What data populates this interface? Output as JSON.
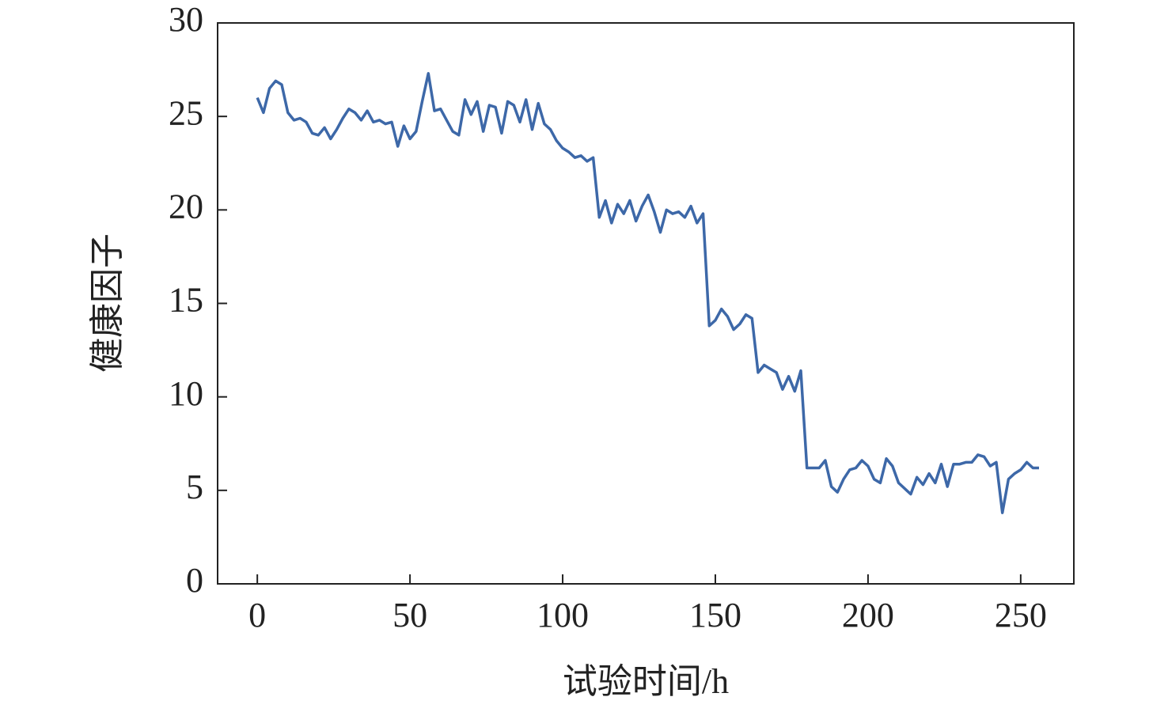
{
  "chart_data": {
    "type": "line",
    "xlabel": "试验时间/h",
    "ylabel": "健康因子",
    "xlim": [
      -13,
      267.4
    ],
    "xticks": [
      0,
      50,
      100,
      150,
      200,
      250
    ],
    "ylim": [
      0,
      30
    ],
    "yticks": [
      0,
      5,
      10,
      15,
      20,
      25,
      30
    ],
    "x": [
      0,
      2,
      4,
      6,
      8,
      10,
      12,
      14,
      16,
      18,
      20,
      22,
      24,
      26,
      28,
      30,
      32,
      34,
      36,
      38,
      40,
      42,
      44,
      46,
      48,
      50,
      52,
      54,
      56,
      58,
      60,
      62,
      64,
      66,
      68,
      70,
      72,
      74,
      76,
      78,
      80,
      82,
      84,
      86,
      88,
      90,
      92,
      94,
      96,
      98,
      100,
      102,
      104,
      106,
      108,
      110,
      112,
      114,
      116,
      118,
      120,
      122,
      124,
      126,
      128,
      130,
      132,
      134,
      136,
      138,
      140,
      142,
      144,
      146,
      148,
      150,
      152,
      154,
      156,
      158,
      160,
      162,
      164,
      166,
      168,
      170,
      172,
      174,
      176,
      178,
      180,
      182,
      184,
      186,
      188,
      190,
      192,
      194,
      196,
      198,
      200,
      202,
      204,
      206,
      208,
      210,
      212,
      214,
      216,
      218,
      220,
      222,
      224,
      226,
      228,
      230,
      232,
      234,
      236,
      238,
      240,
      242,
      244,
      246,
      248,
      250,
      252,
      254,
      256
    ],
    "series": [
      {
        "name": "健康因子",
        "color": "#3d68a8",
        "values": [
          26,
          25.2,
          26.5,
          26.9,
          26.7,
          25.2,
          24.8,
          24.9,
          24.7,
          24.1,
          24,
          24.4,
          23.8,
          24.3,
          24.9,
          25.4,
          25.2,
          24.8,
          25.3,
          24.7,
          24.8,
          24.6,
          24.7,
          23.4,
          24.5,
          23.8,
          24.2,
          25.8,
          27.3,
          25.3,
          25.4,
          24.8,
          24.2,
          24.0,
          25.9,
          25.1,
          25.8,
          24.2,
          25.6,
          25.5,
          24.1,
          25.8,
          25.6,
          24.7,
          25.9,
          24.3,
          25.7,
          24.6,
          24.3,
          23.7,
          23.3,
          23.1,
          22.8,
          22.9,
          22.6,
          22.8,
          19.6,
          20.5,
          19.3,
          20.3,
          19.8,
          20.5,
          19.4,
          20.2,
          20.8,
          19.9,
          18.8,
          20,
          19.8,
          19.9,
          19.6,
          20.2,
          19.3,
          19.8,
          13.8,
          14.1,
          14.7,
          14.3,
          13.6,
          13.9,
          14.4,
          14.2,
          11.3,
          11.7,
          11.5,
          11.3,
          10.4,
          11.1,
          10.3,
          11.4,
          6.2,
          6.2,
          6.2,
          6.6,
          5.2,
          4.9,
          5.6,
          6.1,
          6.2,
          6.6,
          6.3,
          5.6,
          5.4,
          6.7,
          6.3,
          5.4,
          5.1,
          4.8,
          5.7,
          5.3,
          5.9,
          5.4,
          6.4,
          5.2,
          6.4,
          6.4,
          6.5,
          6.5,
          6.9,
          6.8,
          6.3,
          6.5,
          3.8,
          5.6,
          5.9,
          6.1,
          6.5,
          6.2,
          6.2
        ]
      }
    ]
  }
}
